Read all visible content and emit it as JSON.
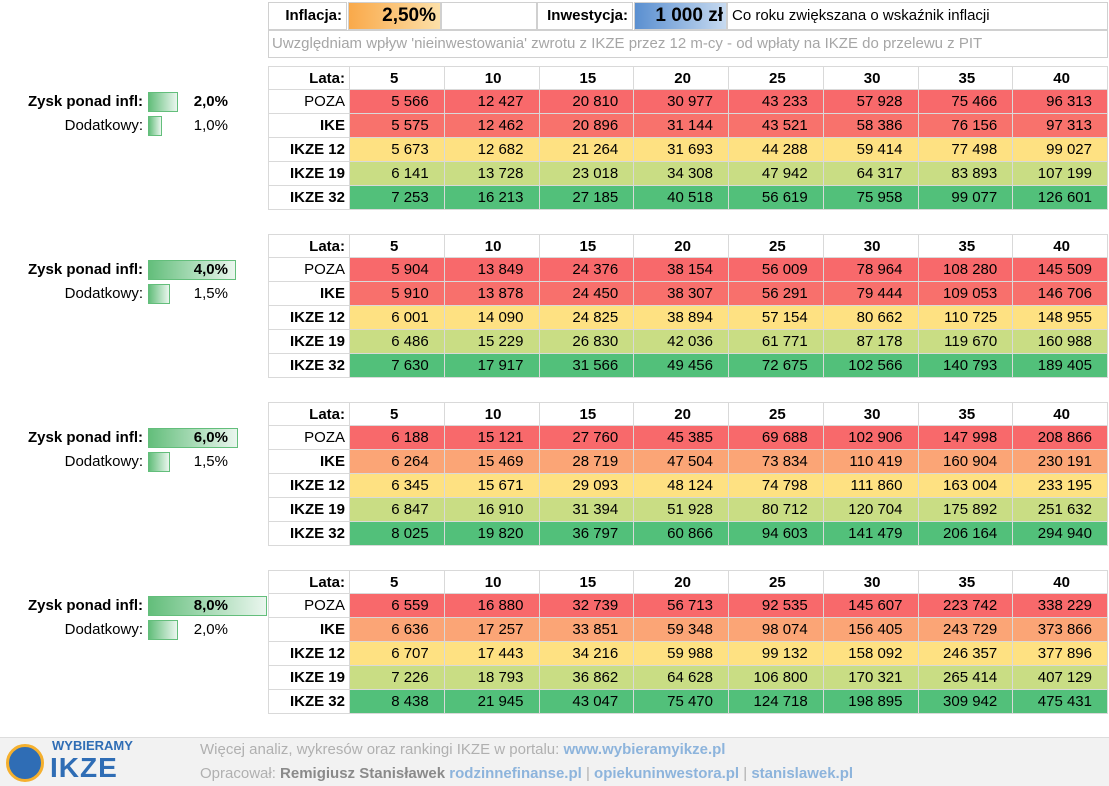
{
  "header": {
    "inflation_label": "Inflacja:",
    "inflation_value": "2,50%",
    "investment_label": "Inwestycja:",
    "investment_value": "1 000 zł",
    "investment_note": "Co roku zwiększana o wskaźnik inflacji",
    "note": "Uwzględniam wpływ 'nieinwestowania' zwrotu z IKZE przez 12 m-cy - od wpłaty na IKZE do przelewu z PIT"
  },
  "blocks": [
    {
      "profit_label": "Zysk ponad infl:",
      "profit_value": "2,0%",
      "extra_label": "Dodatkowy:",
      "extra_value": "1,0%",
      "years_label": "Lata:",
      "years": [
        "5",
        "10",
        "15",
        "20",
        "25",
        "30",
        "35",
        "40"
      ],
      "rows": [
        {
          "label": "POZA",
          "values": [
            "5 566",
            "12 427",
            "20 810",
            "30 977",
            "43 233",
            "57 928",
            "75 466",
            "96 313"
          ]
        },
        {
          "label": "IKE",
          "values": [
            "5 575",
            "12 462",
            "20 896",
            "31 144",
            "43 521",
            "58 386",
            "76 156",
            "97 313"
          ]
        },
        {
          "label": "IKZE 12",
          "values": [
            "5 673",
            "12 682",
            "21 264",
            "31 693",
            "44 288",
            "59 414",
            "77 498",
            "99 027"
          ]
        },
        {
          "label": "IKZE 19",
          "values": [
            "6 141",
            "13 728",
            "23 018",
            "34 308",
            "47 942",
            "64 317",
            "83 893",
            "107 199"
          ]
        },
        {
          "label": "IKZE 32",
          "values": [
            "7 253",
            "16 213",
            "27 185",
            "40 518",
            "56 619",
            "75 958",
            "99 077",
            "126 601"
          ]
        }
      ]
    },
    {
      "profit_label": "Zysk ponad infl:",
      "profit_value": "4,0%",
      "extra_label": "Dodatkowy:",
      "extra_value": "1,5%",
      "years_label": "Lata:",
      "years": [
        "5",
        "10",
        "15",
        "20",
        "25",
        "30",
        "35",
        "40"
      ],
      "rows": [
        {
          "label": "POZA",
          "values": [
            "5 904",
            "13 849",
            "24 376",
            "38 154",
            "56 009",
            "78 964",
            "108 280",
            "145 509"
          ]
        },
        {
          "label": "IKE",
          "values": [
            "5 910",
            "13 878",
            "24 450",
            "38 307",
            "56 291",
            "79 444",
            "109 053",
            "146 706"
          ]
        },
        {
          "label": "IKZE 12",
          "values": [
            "6 001",
            "14 090",
            "24 825",
            "38 894",
            "57 154",
            "80 662",
            "110 725",
            "148 955"
          ]
        },
        {
          "label": "IKZE 19",
          "values": [
            "6 486",
            "15 229",
            "26 830",
            "42 036",
            "61 771",
            "87 178",
            "119 670",
            "160 988"
          ]
        },
        {
          "label": "IKZE 32",
          "values": [
            "7 630",
            "17 917",
            "31 566",
            "49 456",
            "72 675",
            "102 566",
            "140 793",
            "189 405"
          ]
        }
      ]
    },
    {
      "profit_label": "Zysk ponad infl:",
      "profit_value": "6,0%",
      "extra_label": "Dodatkowy:",
      "extra_value": "1,5%",
      "years_label": "Lata:",
      "years": [
        "5",
        "10",
        "15",
        "20",
        "25",
        "30",
        "35",
        "40"
      ],
      "rows": [
        {
          "label": "POZA",
          "values": [
            "6 188",
            "15 121",
            "27 760",
            "45 385",
            "69 688",
            "102 906",
            "147 998",
            "208 866"
          ]
        },
        {
          "label": "IKE",
          "values": [
            "6 264",
            "15 469",
            "28 719",
            "47 504",
            "73 834",
            "110 419",
            "160 904",
            "230 191"
          ]
        },
        {
          "label": "IKZE 12",
          "values": [
            "6 345",
            "15 671",
            "29 093",
            "48 124",
            "74 798",
            "111 860",
            "163 004",
            "233 195"
          ]
        },
        {
          "label": "IKZE 19",
          "values": [
            "6 847",
            "16 910",
            "31 394",
            "51 928",
            "80 712",
            "120 704",
            "175 892",
            "251 632"
          ]
        },
        {
          "label": "IKZE 32",
          "values": [
            "8 025",
            "19 820",
            "36 797",
            "60 866",
            "94 603",
            "141 479",
            "206 164",
            "294 940"
          ]
        }
      ]
    },
    {
      "profit_label": "Zysk ponad infl:",
      "profit_value": "8,0%",
      "extra_label": "Dodatkowy:",
      "extra_value": "2,0%",
      "years_label": "Lata:",
      "years": [
        "5",
        "10",
        "15",
        "20",
        "25",
        "30",
        "35",
        "40"
      ],
      "rows": [
        {
          "label": "POZA",
          "values": [
            "6 559",
            "16 880",
            "32 739",
            "56 713",
            "92 535",
            "145 607",
            "223 742",
            "338 229"
          ]
        },
        {
          "label": "IKE",
          "values": [
            "6 636",
            "17 257",
            "33 851",
            "59 348",
            "98 074",
            "156 405",
            "243 729",
            "373 866"
          ]
        },
        {
          "label": "IKZE 12",
          "values": [
            "6 707",
            "17 443",
            "34 216",
            "59 988",
            "99 132",
            "158 092",
            "246 357",
            "377 896"
          ]
        },
        {
          "label": "IKZE 19",
          "values": [
            "7 226",
            "18 793",
            "36 862",
            "64 628",
            "106 800",
            "170 321",
            "265 414",
            "407 129"
          ]
        },
        {
          "label": "IKZE 32",
          "values": [
            "8 438",
            "21 945",
            "43 047",
            "75 470",
            "124 718",
            "198 895",
            "309 942",
            "475 431"
          ]
        }
      ]
    }
  ],
  "footer": {
    "logo_top": "WYBIERAMY",
    "logo_bottom": "IKZE",
    "line1_text": "Więcej analiz, wykresów oraz rankingi IKZE w portalu:",
    "line1_link": "www.wybieramyikze.pl",
    "line2_text": "Opracował:",
    "author": "Remigiusz Stanisławek",
    "links": [
      "rodzinnefinanse.pl",
      "opiekuninwestora.pl",
      "stanislawek.pl"
    ],
    "separator": "|"
  }
}
